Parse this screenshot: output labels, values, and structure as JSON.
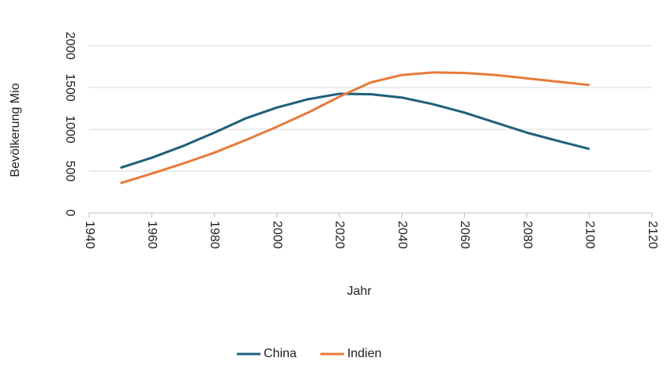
{
  "chart_data": {
    "type": "line",
    "x_label": "Jahr",
    "y_label": "Bevölkerung Mio",
    "x": [
      1950,
      1960,
      1970,
      1980,
      1990,
      2000,
      2010,
      2020,
      2030,
      2040,
      2050,
      2060,
      2070,
      2080,
      2090,
      2100
    ],
    "series": [
      {
        "name": "China",
        "color": "#1f5f7a",
        "values": [
          540,
          660,
          800,
          960,
          1130,
          1260,
          1360,
          1425,
          1420,
          1380,
          1300,
          1200,
          1080,
          960,
          860,
          765
        ]
      },
      {
        "name": "Indien",
        "color": "#e87a3a",
        "values": [
          355,
          470,
          590,
          720,
          870,
          1030,
          1200,
          1390,
          1560,
          1650,
          1680,
          1675,
          1650,
          1610,
          1570,
          1530
        ]
      }
    ],
    "xlim": [
      1940,
      2120
    ],
    "xticks": [
      1940,
      1960,
      1980,
      2000,
      2020,
      2040,
      2060,
      2080,
      2100,
      2120
    ],
    "ylim": [
      0,
      2000
    ],
    "yticks": [
      0,
      500,
      1000,
      1500,
      2000
    ],
    "grid": true,
    "legend": "bottom"
  }
}
